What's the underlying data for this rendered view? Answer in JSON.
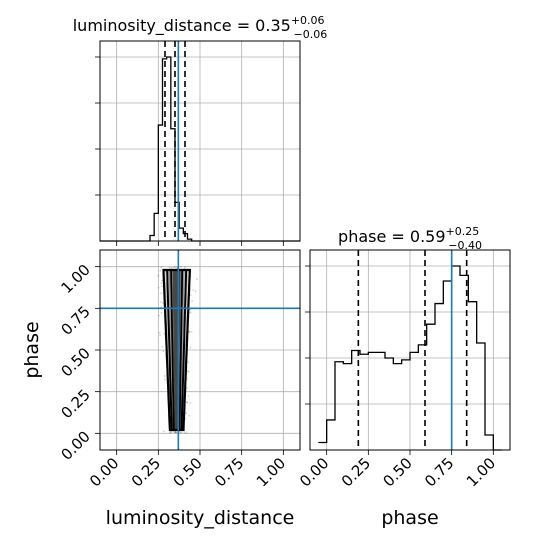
{
  "chart_data": {
    "type": "corner",
    "parameters": [
      "luminosity_distance",
      "phase"
    ],
    "truths": {
      "luminosity_distance": 0.37,
      "phase": 0.75
    },
    "ticks": [
      0.0,
      0.25,
      0.5,
      0.75,
      1.0
    ],
    "tick_labels": [
      "0.00",
      "0.25",
      "0.50",
      "0.75",
      "1.00"
    ],
    "xlim": [
      -0.1,
      1.1
    ],
    "panels": {
      "luminosity_distance": {
        "title": {
          "prefix": "luminosity_distance = 0.35",
          "sup": "+0.06",
          "sub": "−0.06"
        },
        "quantiles": [
          0.29,
          0.35,
          0.41
        ],
        "hist": {
          "edges": [
            -0.1,
            0.2,
            0.225,
            0.25,
            0.275,
            0.3,
            0.325,
            0.35,
            0.375,
            0.4,
            0.425,
            0.45,
            0.475,
            0.5,
            0.525,
            0.55,
            1.1
          ],
          "counts": [
            0,
            0.03,
            0.15,
            0.63,
            0.99,
            1.0,
            0.61,
            0.21,
            0.07,
            0.04,
            0.01,
            0,
            0,
            0,
            0,
            0
          ]
        }
      },
      "phase": {
        "title": {
          "prefix": "phase = 0.59",
          "sup": "+0.25",
          "sub": "−0.40"
        },
        "quantiles": [
          0.19,
          0.59,
          0.84
        ],
        "hist": {
          "edges": [
            -0.05,
            0.0,
            0.05,
            0.1,
            0.15,
            0.2,
            0.25,
            0.3,
            0.35,
            0.4,
            0.45,
            0.5,
            0.55,
            0.6,
            0.65,
            0.7,
            0.75,
            0.8,
            0.85,
            0.9,
            0.95,
            1.0,
            1.05
          ],
          "counts": [
            0.04,
            0.16,
            0.47,
            0.46,
            0.53,
            0.51,
            0.52,
            0.52,
            0.49,
            0.46,
            0.48,
            0.52,
            0.56,
            0.67,
            0.78,
            0.9,
            0.98,
            0.93,
            0.79,
            0.57,
            0.08,
            0.0
          ]
        }
      },
      "joint": {
        "x_center": 0.36,
        "x_halfwidth_at_top": 0.08,
        "x_halfwidth_at_bottom": 0.04,
        "y_range": [
          0.0,
          1.0
        ]
      }
    },
    "xlabel": "luminosity_distance",
    "ylabel": "phase",
    "xlabel2": "phase"
  }
}
